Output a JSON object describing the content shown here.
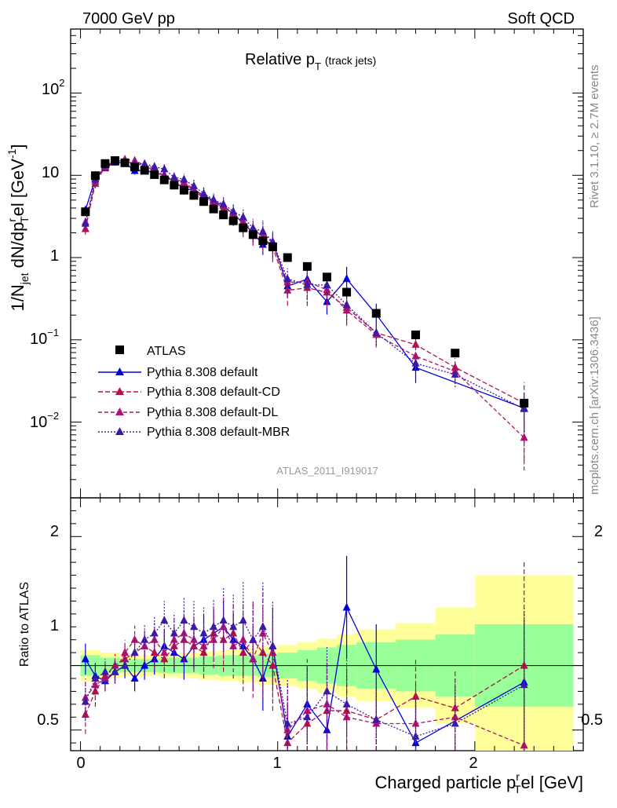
{
  "header": {
    "left": "7000 GeV pp",
    "right": "Soft QCD",
    "plot_title_main": "Relative p",
    "plot_title_sub": "T",
    "plot_title_extra": "(track jets)"
  },
  "side_labels": {
    "rivet": "Rivet 3.1.10, ≥ 2.7M events",
    "mcplots": "mcplots.cern.ch [arXiv:1306.3436]"
  },
  "watermark": "ATLAS_2011_I919017",
  "axes": {
    "ylabel_main": "1/N",
    "ylabel_main_sub": "jet",
    "ylabel_main_rest": " dN/dp",
    "ylabel_main_sup": "r",
    "ylabel_main_sub2": "T",
    "ylabel_main_tail": "el [GeV",
    "ylabel_main_sup2": "-1",
    "ylabel_main_end": "]",
    "ylabel_ratio": "Ratio to ATLAS",
    "xlabel": "Charged particle p",
    "xlabel_sup": "r",
    "xlabel_sub": "T",
    "xlabel_tail": "el [GeV]",
    "x_ticks": [
      "0",
      "1",
      "2"
    ],
    "y_ticks_main": [
      "10",
      "10",
      "1",
      "10",
      "10"
    ],
    "y_ticks_main_exp": [
      "2",
      "",
      "",
      "−1",
      "−2"
    ],
    "y_ticks_ratio": [
      "2",
      "1",
      "0.5"
    ]
  },
  "legend": [
    {
      "name": "ATLAS",
      "color": "#000000",
      "marker": "square",
      "dash": "solid"
    },
    {
      "name": "Pythia 8.308 default",
      "color": "#0000dd",
      "marker": "triangle",
      "dash": "solid"
    },
    {
      "name": "Pythia 8.308 default-CD",
      "color": "#b0124a",
      "marker": "triangle",
      "dash": "6,3"
    },
    {
      "name": "Pythia 8.308 default-DL",
      "color": "#b0126e",
      "marker": "triangle",
      "dash": "5,3"
    },
    {
      "name": "Pythia 8.308 default-MBR",
      "color": "#3c1aa8",
      "marker": "triangle",
      "dash": "2,2"
    }
  ],
  "chart_data": {
    "type": "scatter",
    "x_range": [
      -0.05,
      2.55
    ],
    "y_log": true,
    "y_range": [
      0.0012,
      600
    ],
    "ratio_range": [
      0.34,
      2.3
    ],
    "x": [
      0.025,
      0.075,
      0.125,
      0.175,
      0.225,
      0.275,
      0.325,
      0.375,
      0.425,
      0.475,
      0.525,
      0.575,
      0.625,
      0.675,
      0.725,
      0.775,
      0.825,
      0.875,
      0.925,
      0.975,
      1.05,
      1.15,
      1.25,
      1.35,
      1.5,
      1.7,
      1.9,
      2.25
    ],
    "atlas": [
      3.6,
      9.9,
      13.9,
      15.1,
      14.2,
      12.6,
      11.5,
      10.2,
      8.8,
      7.6,
      6.6,
      5.7,
      4.8,
      3.9,
      3.3,
      2.8,
      2.3,
      1.9,
      1.6,
      1.35,
      1.0,
      0.78,
      0.58,
      0.38,
      0.21,
      0.115,
      0.069,
      0.017
    ],
    "band_edges": [
      0,
      0.1,
      0.2,
      0.3,
      0.4,
      0.5,
      0.6,
      0.7,
      0.8,
      0.9,
      1.0,
      1.1,
      1.2,
      1.3,
      1.4,
      1.6,
      1.8,
      2.0,
      2.5
    ],
    "band_inner": [
      0.08,
      0.06,
      0.05,
      0.05,
      0.06,
      0.06,
      0.07,
      0.08,
      0.08,
      0.09,
      0.1,
      0.12,
      0.14,
      0.16,
      0.18,
      0.2,
      0.24,
      0.32
    ],
    "band_outer": [
      0.12,
      0.1,
      0.08,
      0.08,
      0.09,
      0.1,
      0.11,
      0.12,
      0.13,
      0.15,
      0.16,
      0.18,
      0.21,
      0.24,
      0.28,
      0.33,
      0.45,
      0.7
    ],
    "series": [
      {
        "name": "Pythia 8.308 default",
        "ratio": [
          1.05,
          0.92,
          0.88,
          0.95,
          1.0,
          0.9,
          1.0,
          1.05,
          1.15,
          1.1,
          1.05,
          1.15,
          1.2,
          1.25,
          1.3,
          1.2,
          1.15,
          1.05,
          0.9,
          1.15,
          0.45,
          0.7,
          0.5,
          1.45,
          0.97,
          0.4,
          null,
          0.87
        ],
        "err": [
          0.12,
          0.1,
          0.08,
          0.08,
          0.09,
          0.1,
          0.11,
          0.12,
          0.13,
          0.15,
          0.16,
          0.18,
          0.2,
          0.18,
          0.2,
          0.2,
          0.22,
          0.25,
          0.25,
          0.3,
          0.25,
          0.3,
          0.3,
          0.4,
          0.35,
          0.35,
          null,
          0.5
        ]
      },
      {
        "name": "Pythia 8.308 default-CD",
        "ratio": [
          0.62,
          0.8,
          0.92,
          1.0,
          1.05,
          1.1,
          1.15,
          1.1,
          1.05,
          1.15,
          1.2,
          1.15,
          1.1,
          1.25,
          1.2,
          1.25,
          1.1,
          1.2,
          1.1,
          1.0,
          0.4,
          0.55,
          0.65,
          0.65,
          0.58,
          0.76,
          0.67,
          1.0
        ],
        "err": [
          0.15,
          0.12,
          0.1,
          0.09,
          0.1,
          0.11,
          0.12,
          0.13,
          0.15,
          0.16,
          0.18,
          0.2,
          0.2,
          0.22,
          0.25,
          0.25,
          0.3,
          0.3,
          0.35,
          0.35,
          0.35,
          0.4,
          0.35,
          0.35,
          0.3,
          0.3,
          0.3,
          0.8
        ]
      },
      {
        "name": "Pythia 8.308 default-DL",
        "ratio": [
          0.75,
          0.85,
          0.9,
          0.95,
          1.1,
          1.2,
          1.15,
          1.2,
          1.1,
          1.2,
          1.25,
          1.2,
          1.15,
          1.2,
          1.3,
          1.15,
          1.2,
          1.05,
          1.25,
          1.1,
          0.5,
          0.65,
          0.7,
          0.6,
          0.55,
          0.55,
          0.6,
          0.38
        ],
        "err": [
          0.15,
          0.12,
          0.1,
          0.09,
          0.1,
          0.11,
          0.12,
          0.13,
          0.15,
          0.16,
          0.18,
          0.2,
          0.2,
          0.22,
          0.25,
          0.25,
          0.3,
          0.3,
          0.35,
          0.35,
          0.35,
          0.4,
          0.35,
          0.35,
          0.3,
          0.3,
          0.3,
          0.6
        ]
      },
      {
        "name": "Pythia 8.308 default-MBR",
        "ratio": [
          0.72,
          0.9,
          0.95,
          0.95,
          1.0,
          1.1,
          1.2,
          1.25,
          1.35,
          1.25,
          1.35,
          1.3,
          1.25,
          1.3,
          1.35,
          1.3,
          1.35,
          1.2,
          1.3,
          1.15,
          0.55,
          0.6,
          0.8,
          0.7,
          0.58,
          0.45,
          0.55,
          0.85
        ],
        "err": [
          0.15,
          0.12,
          0.1,
          0.09,
          0.1,
          0.11,
          0.12,
          0.13,
          0.15,
          0.16,
          0.18,
          0.2,
          0.2,
          0.22,
          0.25,
          0.25,
          0.3,
          0.3,
          0.35,
          0.35,
          0.35,
          0.4,
          0.35,
          0.35,
          0.3,
          0.3,
          0.3,
          0.6
        ]
      }
    ]
  }
}
